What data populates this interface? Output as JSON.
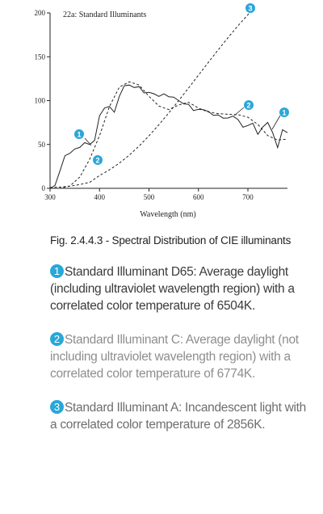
{
  "chart_data": {
    "type": "line",
    "title": "22a: Standard Illuminants",
    "xlabel": "Wavelength (nm)",
    "ylabel": "",
    "xlim": [
      300,
      780
    ],
    "ylim": [
      0,
      200
    ],
    "xticks": [
      300,
      400,
      500,
      600,
      700
    ],
    "yticks": [
      0,
      50,
      100,
      150,
      200
    ],
    "grid": false,
    "series": [
      {
        "name": "1",
        "style": "solid",
        "color": "#222222",
        "x": [
          300,
          310,
          320,
          330,
          340,
          350,
          360,
          370,
          380,
          390,
          400,
          410,
          420,
          430,
          440,
          450,
          460,
          470,
          480,
          490,
          500,
          510,
          520,
          530,
          540,
          550,
          560,
          570,
          580,
          590,
          600,
          610,
          620,
          630,
          640,
          650,
          660,
          670,
          680,
          690,
          700,
          710,
          720,
          730,
          740,
          750,
          760,
          770,
          780
        ],
        "values": [
          0.0,
          3.3,
          20.0,
          37.1,
          39.9,
          44.9,
          46.6,
          52.1,
          50.0,
          54.6,
          82.8,
          91.5,
          93.4,
          86.7,
          104.9,
          117.0,
          117.8,
          114.9,
          115.9,
          108.8,
          109.4,
          107.8,
          104.8,
          107.7,
          104.4,
          104.0,
          100.0,
          96.3,
          95.8,
          88.7,
          90.0,
          89.6,
          87.7,
          83.3,
          83.7,
          80.0,
          80.2,
          82.3,
          78.3,
          69.7,
          71.6,
          74.3,
          61.6,
          69.9,
          75.1,
          63.6,
          46.4,
          66.8,
          63.4
        ]
      },
      {
        "name": "2",
        "style": "dashed",
        "color": "#222222",
        "x": [
          300,
          320,
          340,
          360,
          380,
          400,
          420,
          440,
          460,
          480,
          500,
          520,
          540,
          560,
          580,
          600,
          620,
          640,
          660,
          680,
          700,
          720,
          740,
          760,
          780
        ],
        "values": [
          0.0,
          0.01,
          2.61,
          12.8,
          33.0,
          60.1,
          93.2,
          115.4,
          121.5,
          117.8,
          104.9,
          93.8,
          89.8,
          95.0,
          98.2,
          91.4,
          87.0,
          85.2,
          84.4,
          84.0,
          81.0,
          72.9,
          60.2,
          55.0,
          56.0
        ]
      },
      {
        "name": "3",
        "style": "dashed",
        "color": "#222222",
        "x": [
          300,
          320,
          340,
          360,
          380,
          400,
          420,
          440,
          460,
          480,
          500,
          520,
          540,
          560,
          580,
          600,
          620,
          640,
          660,
          680,
          700,
          710
        ],
        "values": [
          0.93,
          1.4,
          2.5,
          4.2,
          6.8,
          14.7,
          21.0,
          28.7,
          37.8,
          48.2,
          59.9,
          72.5,
          86.0,
          100.0,
          114.4,
          129.0,
          143.6,
          158.0,
          172.0,
          185.4,
          198.0,
          204.0
        ]
      }
    ],
    "annotations": [
      {
        "label": "1",
        "color": "#2aa7d9"
      },
      {
        "label": "2",
        "color": "#2aa7d9"
      },
      {
        "label": "3",
        "color": "#2aa7d9"
      },
      {
        "label": "1",
        "color": "#2aa7d9"
      },
      {
        "label": "2",
        "color": "#2aa7d9"
      }
    ]
  },
  "caption": "Fig. 2.4.4.3 - Spectral Distribution of CIE illuminants",
  "legend": [
    {
      "num": "1",
      "text": "Standard Illuminant D65: Average daylight (including ultraviolet wavelength region) with a correlated color temperature of 6504K."
    },
    {
      "num": "2",
      "text": "Standard Illuminant C: Average daylight (not including ultraviolet wavelength region) with a correlated color temperature of 6774K."
    },
    {
      "num": "3",
      "text": "Standard Illuminant A: Incandescent light with a correlated color temperature of 2856K."
    }
  ]
}
